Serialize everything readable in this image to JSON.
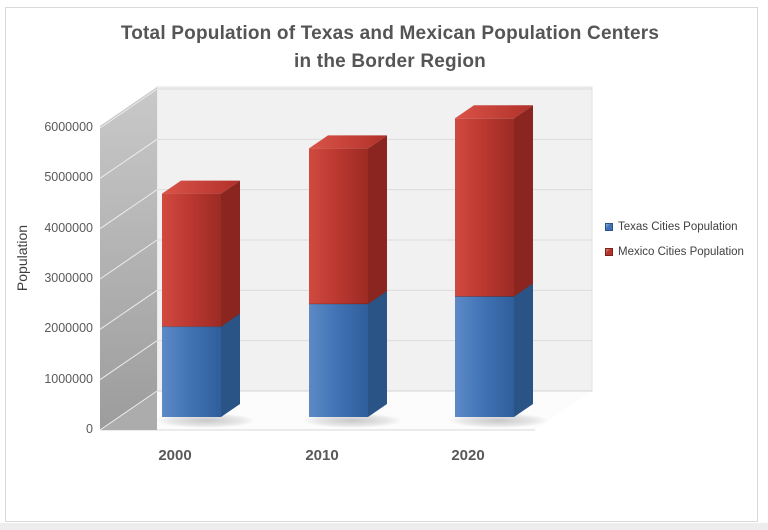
{
  "title": {
    "line1": "Total Population of Texas and Mexican Population Centers",
    "line2": "in the Border Region"
  },
  "y_axis": {
    "title": "Population",
    "tick_labels": [
      "0",
      "1000000",
      "2000000",
      "3000000",
      "4000000",
      "5000000",
      "6000000"
    ]
  },
  "x_axis": {
    "categories": [
      "2000",
      "2010",
      "2020"
    ]
  },
  "legend": {
    "items": [
      {
        "label": "Texas Cities Population",
        "color": "#3E72B4",
        "border": "#2B5486"
      },
      {
        "label": "Mexico Cities Population",
        "color": "#B43228",
        "border": "#7E221C"
      }
    ]
  },
  "colors": {
    "title_text": "#555555",
    "axis_text": "#595959",
    "legend_text": "#404040",
    "blue_front_light": "#5D8AC6",
    "blue_front": "#4274B6",
    "blue_front_dark": "#2F5E9C",
    "blue_side": "#2B5486",
    "red_front_light": "#D04A3F",
    "red_front": "#BC3931",
    "red_front_dark": "#9B2B24",
    "red_side": "#8A2520",
    "red_top_light": "#DA5348",
    "red_top_dark": "#B0312A",
    "wall_light": "#C9C9C9",
    "wall_dark": "#9C9C9C",
    "back_wall": "#F1F1F1",
    "gridline": "#DCDCDC",
    "floor": "#FCFCFC",
    "floor_edge": "#D9D9D9",
    "wedge": "#ACACAC"
  },
  "chart_data": {
    "type": "bar",
    "subtype": "stacked-3d-column",
    "title": "Total Population of Texas and Mexican Population Centers in the Border Region",
    "categories": [
      "2000",
      "2010",
      "2020"
    ],
    "series": [
      {
        "name": "Texas Cities Population",
        "color": "#4274B6",
        "values": [
          1800000,
          2250000,
          2400000
        ]
      },
      {
        "name": "Mexico Cities Population",
        "color": "#BC3931",
        "values": [
          2650000,
          3100000,
          3550000
        ]
      }
    ],
    "stacked_totals": [
      4450000,
      5350000,
      5950000
    ],
    "xlabel": "",
    "ylabel": "Population",
    "ylim": [
      0,
      6000000
    ],
    "ytick_step": 1000000,
    "legend_position": "right",
    "grid": true
  }
}
